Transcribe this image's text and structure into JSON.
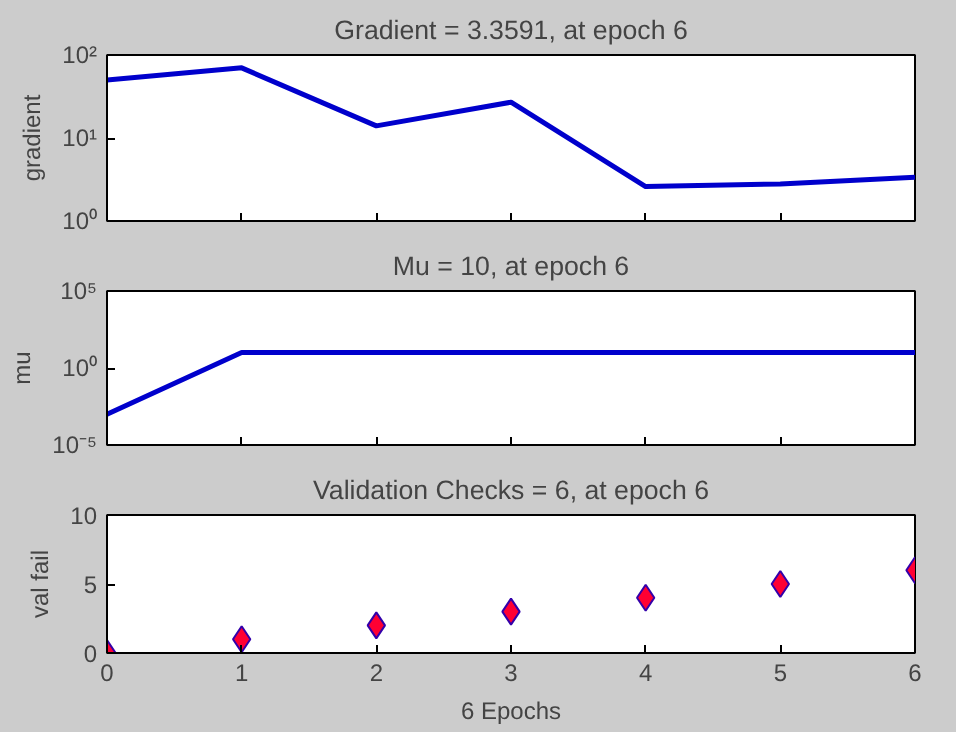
{
  "chart_data": [
    {
      "type": "line",
      "title": "Gradient = 3.3591, at epoch 6",
      "ylabel": "gradient",
      "log": "y",
      "x": [
        0,
        1,
        2,
        3,
        4,
        5,
        6
      ],
      "series": [
        {
          "color": "#0000cc",
          "values": [
            50,
            70,
            14,
            27,
            2.6,
            2.8,
            3.3591
          ]
        }
      ],
      "xlim": [
        0,
        6
      ],
      "xticks": [
        0,
        1,
        2,
        3,
        4,
        5,
        6
      ],
      "ylim": [
        1,
        100
      ],
      "yticks": [
        {
          "value": 1,
          "label": "10⁰"
        },
        {
          "value": 10,
          "label": "10¹"
        },
        {
          "value": 100,
          "label": "10²"
        }
      ],
      "grid": false,
      "tick_labels": "y"
    },
    {
      "type": "line",
      "title": "Mu = 10, at epoch 6",
      "ylabel": "mu",
      "log": "y",
      "x": [
        0,
        1,
        2,
        3,
        4,
        5,
        6
      ],
      "series": [
        {
          "color": "#0000cc",
          "values": [
            0.001,
            10,
            10,
            10,
            10,
            10,
            10
          ]
        }
      ],
      "xlim": [
        0,
        6
      ],
      "xticks": [
        0,
        1,
        2,
        3,
        4,
        5,
        6
      ],
      "ylim": [
        1e-05,
        100000
      ],
      "yticks": [
        {
          "value": 1e-05,
          "label": "10⁻⁵"
        },
        {
          "value": 1,
          "label": "10⁰"
        },
        {
          "value": 100000,
          "label": "10⁵"
        }
      ],
      "grid": false,
      "tick_labels": "y"
    },
    {
      "type": "scatter",
      "title": "Validation Checks = 6, at epoch 6",
      "ylabel": "val fail",
      "xlabel": "6 Epochs",
      "marker": "diamond",
      "x": [
        0,
        1,
        2,
        3,
        4,
        5,
        6
      ],
      "series": [
        {
          "color": "#ff0033",
          "values": [
            0,
            1,
            2,
            3,
            4,
            5,
            6
          ]
        }
      ],
      "xlim": [
        0,
        6
      ],
      "xticks": [
        0,
        1,
        2,
        3,
        4,
        5,
        6
      ],
      "ylim": [
        0,
        10
      ],
      "yticks": [
        0,
        5,
        10
      ],
      "grid": false
    }
  ]
}
